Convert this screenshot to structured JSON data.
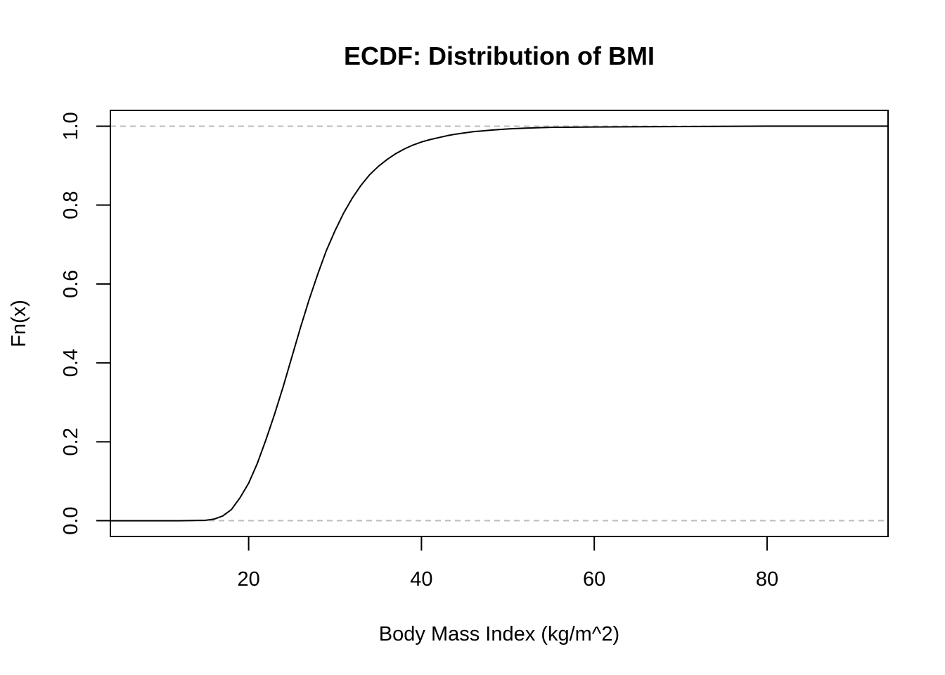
{
  "chart_data": {
    "type": "line",
    "title": "ECDF: Distribution of BMI",
    "xlabel": "Body Mass Index (kg/m^2)",
    "ylabel": "Fn(x)",
    "xlim": [
      4,
      94
    ],
    "ylim": [
      -0.04,
      1.04
    ],
    "xticks": [
      20,
      40,
      60,
      80
    ],
    "xtick_labels": [
      "20",
      "40",
      "60",
      "80"
    ],
    "yticks": [
      0.0,
      0.2,
      0.4,
      0.6,
      0.8,
      1.0
    ],
    "ytick_labels": [
      "0.0",
      "0.2",
      "0.4",
      "0.6",
      "0.8",
      "1.0"
    ],
    "reference_lines_y": [
      0,
      1
    ],
    "grid": false,
    "series": [
      {
        "x": [
          4,
          12,
          15,
          16,
          17,
          18,
          19,
          20,
          21,
          22,
          23,
          24,
          25,
          26,
          27,
          28,
          29,
          30,
          31,
          32,
          33,
          34,
          35,
          36,
          37,
          38,
          39,
          40,
          41,
          42,
          43,
          44,
          45,
          46,
          47,
          48,
          50,
          52,
          55,
          60,
          70,
          80,
          94
        ],
        "y": [
          0,
          0,
          0.001,
          0.004,
          0.012,
          0.028,
          0.058,
          0.095,
          0.145,
          0.205,
          0.27,
          0.34,
          0.415,
          0.49,
          0.56,
          0.625,
          0.685,
          0.735,
          0.78,
          0.818,
          0.85,
          0.877,
          0.898,
          0.915,
          0.93,
          0.942,
          0.952,
          0.96,
          0.966,
          0.971,
          0.976,
          0.98,
          0.983,
          0.986,
          0.988,
          0.99,
          0.993,
          0.995,
          0.997,
          0.998,
          0.999,
          1.0,
          1.0
        ]
      }
    ]
  }
}
